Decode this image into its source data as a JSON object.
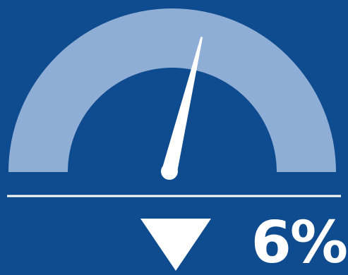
{
  "gauge": {
    "reading_percent": 6,
    "trend": "down",
    "value_text": "6%",
    "colors": {
      "background": "#0f4b8f",
      "arc": "#8eaed6",
      "needle": "#ffffff",
      "divider": "#ffffff",
      "arrow": "#ffffff"
    },
    "icons": {
      "needle": "gauge-needle",
      "trend": "down-arrow-icon"
    }
  }
}
